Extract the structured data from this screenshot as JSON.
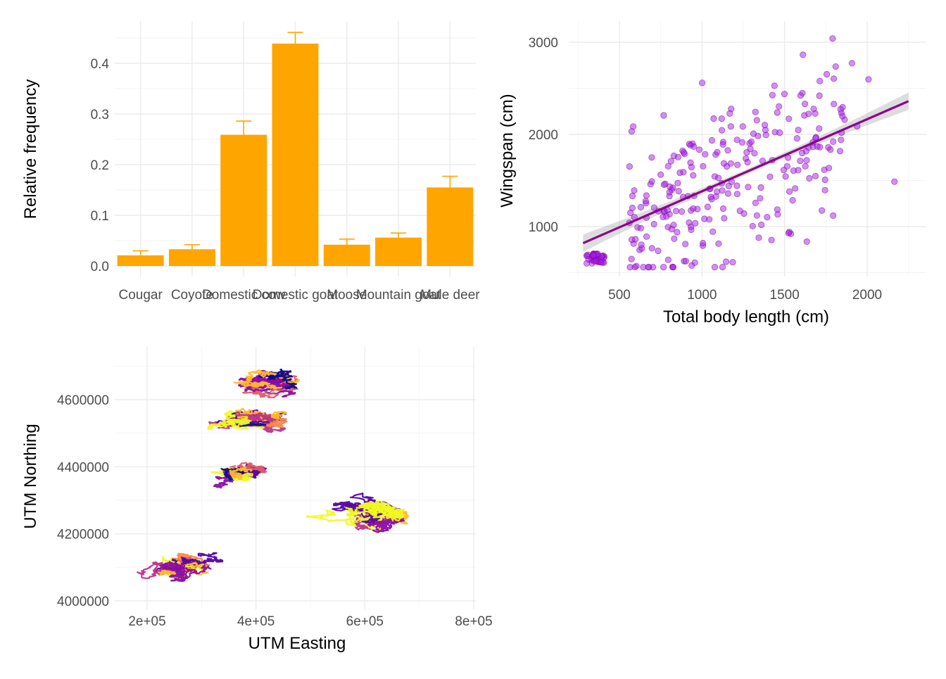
{
  "chart_data": [
    {
      "type": "bar",
      "xlabel": "",
      "ylabel": "Relative frequency",
      "categories": [
        "Cougar",
        "Coyote",
        "Domestic cow",
        "Domestic goat",
        "Moose",
        "Mountain goat",
        "Mule deer"
      ],
      "values": [
        0.021,
        0.033,
        0.259,
        0.439,
        0.042,
        0.056,
        0.155
      ],
      "error_upper": [
        0.03,
        0.042,
        0.286,
        0.461,
        0.053,
        0.065,
        0.177
      ],
      "ylim": [
        0,
        0.47
      ],
      "yticks": [
        0.0,
        0.1,
        0.2,
        0.3,
        0.4
      ],
      "ytick_labels": [
        "0.0",
        "0.1",
        "0.2",
        "0.3",
        "0.4"
      ],
      "bar_color": "#FFA500",
      "grid": true
    },
    {
      "type": "scatter",
      "xlabel": "Total body length (cm)",
      "ylabel": "Wingspan (cm)",
      "xlim": [
        210,
        2330
      ],
      "ylim": [
        460,
        3190
      ],
      "xticks": [
        500,
        1000,
        1500,
        2000
      ],
      "yticks": [
        1000,
        2000,
        3000
      ],
      "point_color": "#A020F0",
      "line_color": "#8B008B",
      "ribbon_color": "#b3b3b3",
      "trend": {
        "x": [
          280,
          2250
        ],
        "y": [
          820,
          2360
        ],
        "se_end": 95
      },
      "n_points": 300,
      "grid": true
    },
    {
      "type": "line",
      "xlabel": "UTM Easting",
      "ylabel": "UTM Northing",
      "xlim": [
        160000,
        700000
      ],
      "ylim": [
        3995000,
        4730000
      ],
      "xticks": [
        200000,
        400000,
        600000,
        800000
      ],
      "xtick_labels": [
        "2e+05",
        "4e+05",
        "6e+05",
        "8e+05"
      ],
      "yticks": [
        4000000,
        4200000,
        4400000,
        4600000
      ],
      "ytick_labels": [
        "4000000",
        "4200000",
        "4400000",
        "4600000"
      ],
      "palette": [
        "#0D0887",
        "#5402A3",
        "#8B0AA5",
        "#B93289",
        "#DB5C68",
        "#F48849",
        "#FEBC2A",
        "#F0F921"
      ],
      "clusters": [
        {
          "center": [
            420000,
            4650000
          ],
          "spread": [
            75000,
            45000
          ]
        },
        {
          "center": [
            395000,
            4545000
          ],
          "spread": [
            70000,
            45000
          ]
        },
        {
          "center": [
            375000,
            4380000
          ],
          "spread": [
            55000,
            35000
          ]
        },
        {
          "center": [
            610000,
            4255000
          ],
          "spread": [
            85000,
            60000
          ]
        },
        {
          "center": [
            255000,
            4105000
          ],
          "spread": [
            65000,
            45000
          ]
        }
      ],
      "grid": true
    }
  ]
}
